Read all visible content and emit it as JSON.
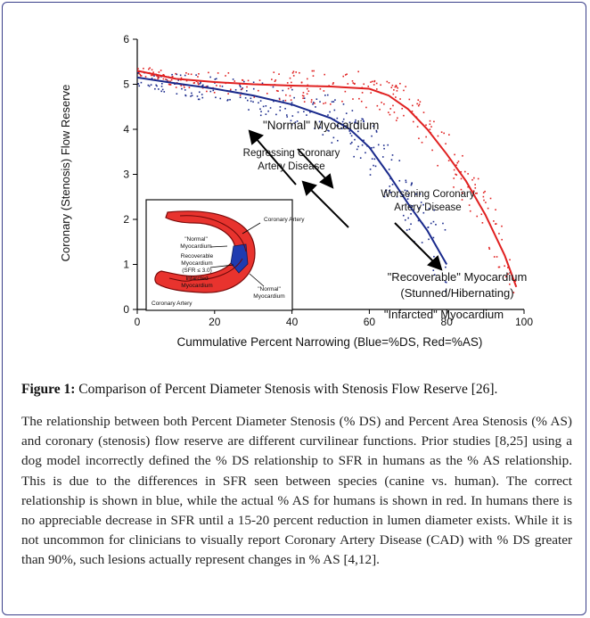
{
  "figure": {
    "chart_data": {
      "type": "scatter",
      "xlabel": "Cummulative Percent Narrowing (Blue=%DS, Red=%AS)",
      "ylabel": "Coronary (Stenosis) Flow Reserve",
      "xlim": [
        0,
        100
      ],
      "ylim": [
        0,
        6
      ],
      "x_ticks": [
        "0",
        "20",
        "40",
        "60",
        "80",
        "100"
      ],
      "y_ticks": [
        "0",
        "1",
        "2",
        "3",
        "4",
        "5",
        "6"
      ],
      "series": [
        {
          "name": "Blue=%DS",
          "color": "#1a2a8c",
          "x": [
            0,
            10,
            20,
            30,
            40,
            50,
            55,
            60,
            65,
            70,
            75,
            78,
            80
          ],
          "y": [
            5.15,
            5.02,
            4.9,
            4.75,
            4.55,
            4.25,
            4.0,
            3.6,
            3.0,
            2.35,
            1.75,
            1.3,
            1.0
          ]
        },
        {
          "name": "Red=%AS",
          "color": "#e02020",
          "x": [
            0,
            10,
            20,
            30,
            40,
            50,
            60,
            65,
            70,
            75,
            80,
            85,
            90,
            95,
            98
          ],
          "y": [
            5.3,
            5.12,
            5.05,
            5.0,
            4.97,
            4.95,
            4.9,
            4.75,
            4.45,
            4.0,
            3.45,
            2.85,
            2.1,
            1.2,
            0.5
          ]
        }
      ],
      "annotations": [
        "\"Normal\" Myocardium",
        "Regressing Coronary Artery Disease",
        "Worsening Coronary Artery Disease",
        "\"Recoverable\" Myocardium (Stunned/Hibernating)",
        "\"Infarcted\" Myocardium"
      ]
    },
    "labels": {
      "normal": "\"Normal\" Myocardium",
      "regressing_1": "Regressing Coronary",
      "regressing_2": "Artery Disease",
      "worsening_1": "Worsening Coronary",
      "worsening_2": "Artery Disease",
      "recoverable_1": "\"Recoverable\" Myocardium",
      "recoverable_2": "(Stunned/Hibernating)",
      "infarcted": "\"Infarcted\" Myocardium"
    },
    "inset": {
      "coronary_artery_top": "Coronary Artery",
      "normal_myocardium_1": "\"Normal\"",
      "normal_myocardium_2": "Myocardium",
      "recoverable_1": "Recoverable",
      "recoverable_2": "Myocardium",
      "recoverable_3": "(SFR ≤ 3.0)",
      "infarcted_1": "Infarcted",
      "infarcted_2": "Myocardium",
      "normal_right_1": "\"Normal\"",
      "normal_right_2": "Myocardium",
      "coronary_artery_bottom": "Coronary Artery"
    }
  },
  "caption": {
    "label": "Figure 1:",
    "text": " Comparison of Percent Diameter Stenosis with Stenosis Flow Reserve [26]."
  },
  "body_text": "The relationship between both Percent Diameter Stenosis (% DS) and Percent Area Stenosis (% AS) and coronary (stenosis) flow reserve are different curvilinear functions. Prior studies [8,25] using a dog model incorrectly defined the % DS relationship to SFR in humans as the % AS relationship. This is due to the differences in SFR seen between species (canine vs. human). The correct relationship is shown in blue, while the actual % AS for humans is shown in red. In humans there is no appreciable decrease in SFR until a 15-20 percent reduction in lumen diameter exists. While it is not uncommon for clinicians to visually report Coronary Artery Disease (CAD) with % DS greater than 90%, such lesions actually represent changes in % AS [4,12]."
}
